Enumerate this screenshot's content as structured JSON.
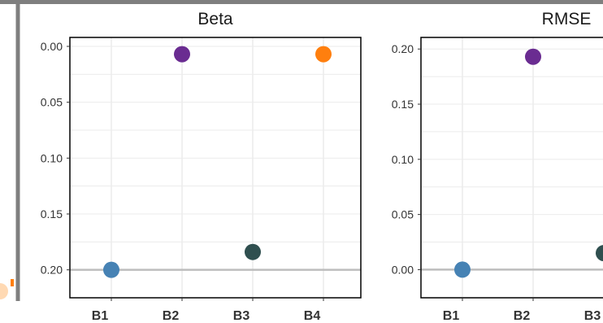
{
  "colors": {
    "blue": "#4682B4",
    "purple": "#6A2C91",
    "dark_teal": "#2F4F4F",
    "orange": "#FF7F0E",
    "frame_gray": "#7F7F7F",
    "grid": "#EBEBEB",
    "reference_line": "#BDBDBD",
    "axis_text": "#333333",
    "title_text": "#1A1A1A"
  },
  "chart_data": [
    {
      "type": "scatter",
      "title": "Beta",
      "categories": [
        "B1",
        "B2",
        "B3",
        "B4"
      ],
      "y_ticks": [
        "0.00",
        "0.05",
        "0.10",
        "0.15",
        "0.20"
      ],
      "y_reversed": true,
      "ylim": [
        -0.008,
        0.225
      ],
      "reference_line_y": 0.2,
      "grid": true,
      "points": [
        {
          "category": "B1",
          "value": 0.2,
          "color": "#4682B4"
        },
        {
          "category": "B2",
          "value": 0.007,
          "color": "#6A2C91"
        },
        {
          "category": "B3",
          "value": 0.184,
          "color": "#2F4F4F"
        },
        {
          "category": "B4",
          "value": 0.007,
          "color": "#FF7F0E"
        }
      ]
    },
    {
      "type": "scatter",
      "title": "RMSE",
      "categories": [
        "B1",
        "B2",
        "B3"
      ],
      "y_ticks": [
        "0.00",
        "0.05",
        "0.10",
        "0.15",
        "0.20"
      ],
      "y_reversed": false,
      "ylim": [
        -0.0255,
        0.2105
      ],
      "reference_line_y": 0.0,
      "grid": true,
      "points": [
        {
          "category": "B1",
          "value": 0.0,
          "color": "#4682B4"
        },
        {
          "category": "B2",
          "value": 0.193,
          "color": "#6A2C91"
        },
        {
          "category": "B3",
          "value": 0.015,
          "color": "#2F4F4F"
        }
      ]
    }
  ]
}
